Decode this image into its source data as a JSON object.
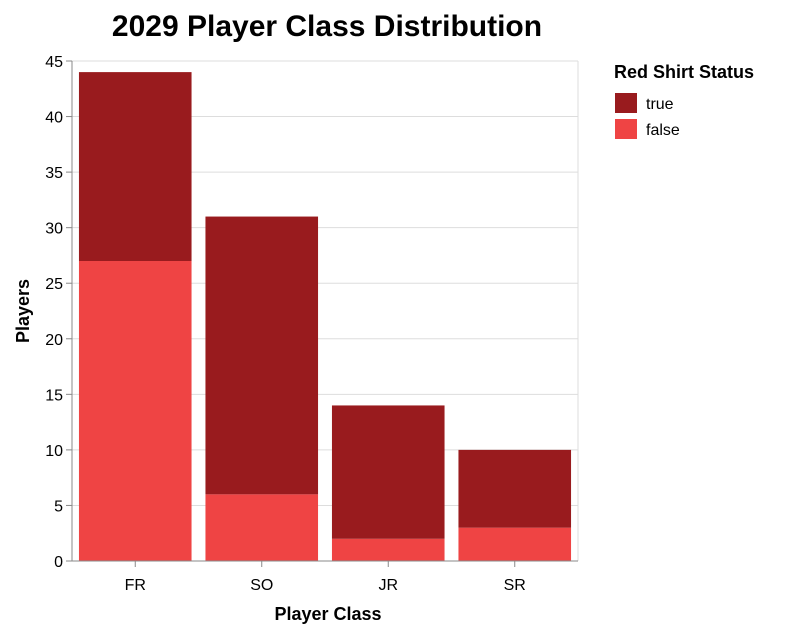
{
  "chart_data": {
    "type": "bar",
    "stacked": true,
    "title": "2029 Player Class Distribution",
    "xlabel": "Player Class",
    "ylabel": "Players",
    "categories": [
      "FR",
      "SO",
      "JR",
      "SR"
    ],
    "series": [
      {
        "name": "false",
        "color": "#ef4444",
        "values": [
          27,
          6,
          2,
          3
        ]
      },
      {
        "name": "true",
        "color": "#991b1e",
        "values": [
          17,
          25,
          12,
          7
        ]
      }
    ],
    "ylim": [
      0,
      45
    ],
    "yticks": [
      0,
      5,
      10,
      15,
      20,
      25,
      30,
      35,
      40,
      45
    ],
    "grid": true,
    "legend": {
      "title": "Red Shirt Status",
      "placement": "right",
      "entries": [
        {
          "label": "true",
          "color": "#991b1e"
        },
        {
          "label": "false",
          "color": "#ef4444"
        }
      ]
    }
  }
}
